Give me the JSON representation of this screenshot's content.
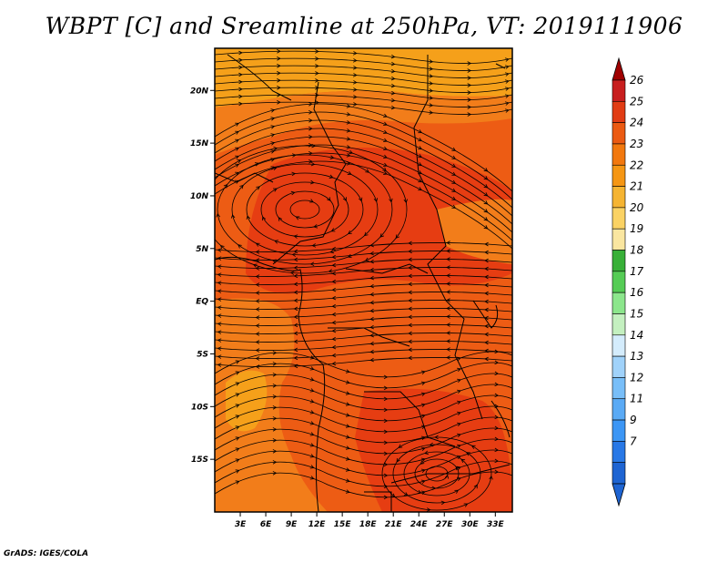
{
  "title": "WBPT [C] and Sreamline at 250hPa, VT: 2019111906",
  "credit": "GrADS: IGES/COLA",
  "map": {
    "lon_range": [
      0,
      35
    ],
    "lat_range": [
      -20,
      24
    ],
    "x_ticks": [
      {
        "value": 3,
        "label": "3E"
      },
      {
        "value": 6,
        "label": "6E"
      },
      {
        "value": 9,
        "label": "9E"
      },
      {
        "value": 12,
        "label": "12E"
      },
      {
        "value": 15,
        "label": "15E"
      },
      {
        "value": 18,
        "label": "18E"
      },
      {
        "value": 21,
        "label": "21E"
      },
      {
        "value": 24,
        "label": "24E"
      },
      {
        "value": 27,
        "label": "27E"
      },
      {
        "value": 30,
        "label": "30E"
      },
      {
        "value": 33,
        "label": "33E"
      }
    ],
    "y_ticks": [
      {
        "value": 20,
        "label": "20N"
      },
      {
        "value": 15,
        "label": "15N"
      },
      {
        "value": 10,
        "label": "10N"
      },
      {
        "value": 5,
        "label": "5N"
      },
      {
        "value": 0,
        "label": "EQ"
      },
      {
        "value": -5,
        "label": "5S"
      },
      {
        "value": -10,
        "label": "10S"
      },
      {
        "value": -15,
        "label": "15S"
      }
    ],
    "field_colors": {
      "c22": "#f27d1a",
      "c23": "#ed5c14",
      "c24": "#e63d12",
      "c21": "#f5a01a",
      "c20": "#fac040"
    }
  },
  "colorbar": {
    "levels": [
      "7",
      "9",
      "11",
      "12",
      "13",
      "14",
      "15",
      "16",
      "17",
      "18",
      "19",
      "20",
      "21",
      "22",
      "23",
      "24",
      "25",
      "26"
    ],
    "colors": [
      "#1e64d2",
      "#2878e6",
      "#3c96f5",
      "#5aaaf5",
      "#78bef8",
      "#a0d2fa",
      "#d4ecfc",
      "#c4f0c0",
      "#8ce68c",
      "#55cc55",
      "#38b038",
      "#fae6a0",
      "#fad264",
      "#f5b432",
      "#f59614",
      "#f2780e",
      "#eb5a12",
      "#e13c14",
      "#c81e1e"
    ],
    "lower_color": "#1e64d2",
    "upper_color": "#a00000"
  }
}
